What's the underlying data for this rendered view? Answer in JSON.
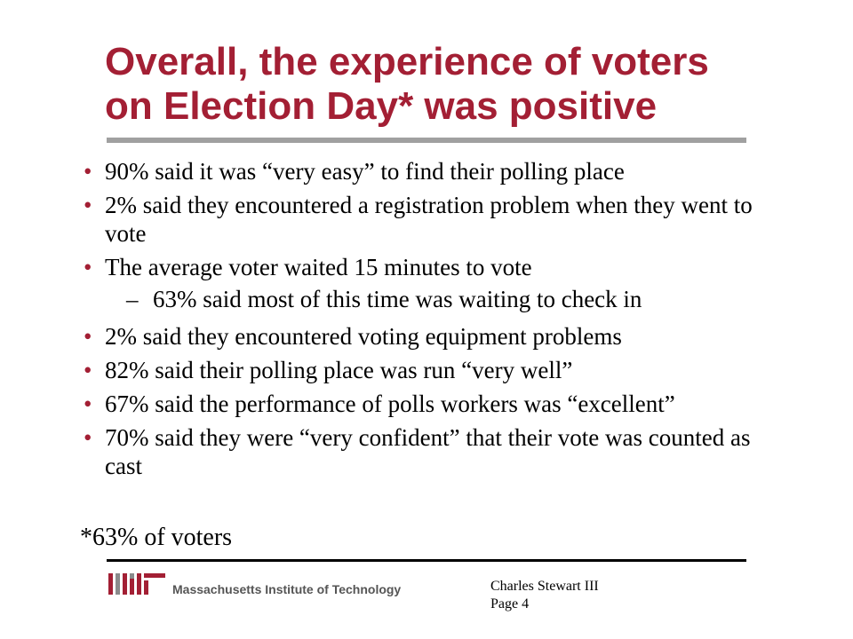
{
  "slide": {
    "title_line1": "Overall, the experience of voters",
    "title_line2": "on Election Day* was positive",
    "bullets": [
      "90% said it was “very easy” to find their polling place",
      "2% said they encountered a registration problem when they went to vote",
      "The average voter waited 15 minutes to vote",
      "2% said they encountered voting equipment problems",
      "82% said their polling place was run “very well”",
      "67% said the performance of polls workers was “excellent”",
      "70% said they were “very confident” that their vote was counted as cast"
    ],
    "sub_bullet_dash": "–",
    "sub_bullet": "63% said most of this time was waiting to check in",
    "footnote": "*63% of voters"
  },
  "footer": {
    "logo_name": "mit-logo",
    "institution": "Massachusetts Institute of Technology",
    "author": "Charles Stewart III",
    "page": "Page 4"
  },
  "colors": {
    "accent": "#a31f34",
    "rule": "#a0a0a0",
    "logo_gray": "#8a8b8c"
  }
}
